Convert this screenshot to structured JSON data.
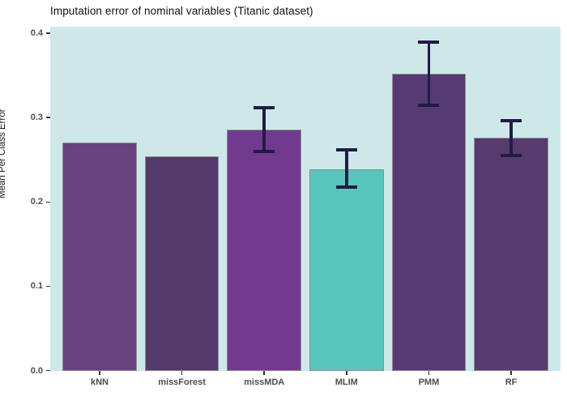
{
  "chart_data": {
    "type": "bar",
    "title": "Imputation error of nominal variables (Titanic dataset)",
    "xlabel": "",
    "ylabel": "Mean Per Class Error",
    "categories": [
      "kNN",
      "missForest",
      "missMDA",
      "MLIM",
      "PMM",
      "RF"
    ],
    "values": [
      0.27,
      0.254,
      0.286,
      0.239,
      0.352,
      0.276
    ],
    "error_bars": [
      null,
      null,
      {
        "low": 0.26,
        "high": 0.312
      },
      {
        "low": 0.218,
        "high": 0.262
      },
      {
        "low": 0.315,
        "high": 0.39
      },
      {
        "low": 0.255,
        "high": 0.296
      }
    ],
    "bar_colors": [
      "#68417f",
      "#533a6b",
      "#713a8e",
      "#57c5bc",
      "#563a74",
      "#573b6e"
    ],
    "bar_border_color": "#8f8f8f",
    "error_bar_color": "#221b45",
    "panel_background": "#cee8ea",
    "ylim": [
      0.0,
      0.4
    ],
    "yticks": [
      0.0,
      0.1,
      0.2,
      0.3,
      0.4
    ],
    "ytick_labels": [
      "0.0",
      "0.1",
      "0.2",
      "0.3",
      "0.4"
    ],
    "grid": "off",
    "legend": "none"
  }
}
